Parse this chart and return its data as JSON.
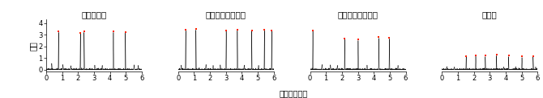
{
  "titles": [
    "生殖適齢期",
    "中年期（周期的）",
    "中年期（不規則）",
    "閉経後"
  ],
  "xlabel": "記録（時間）",
  "ylabel": "強度",
  "xlim": [
    0,
    6
  ],
  "ylim": [
    -0.15,
    4.3
  ],
  "yticks": [
    0,
    1,
    2,
    3,
    4
  ],
  "xticks": [
    0,
    1,
    2,
    3,
    4,
    5,
    6
  ],
  "spike_color": "#111111",
  "dot_color": "#ff2200",
  "panels": [
    {
      "name": "生殖適齢期",
      "spikes": [
        0.78,
        2.15,
        2.38,
        4.22,
        4.97
      ],
      "spike_heights": [
        3.2,
        3.1,
        3.2,
        3.2,
        3.15
      ],
      "medium_spikes": [
        [
          0.35,
          0.55
        ],
        [
          1.05,
          0.45
        ],
        [
          1.55,
          0.35
        ],
        [
          3.05,
          0.4
        ],
        [
          3.52,
          0.38
        ],
        [
          5.52,
          0.42
        ],
        [
          5.78,
          0.38
        ]
      ]
    },
    {
      "name": "中年期（周期的）",
      "spikes": [
        0.48,
        1.12,
        3.02,
        3.72,
        4.62,
        5.42,
        5.88
      ],
      "spike_heights": [
        3.35,
        3.4,
        3.3,
        3.35,
        3.3,
        3.35,
        3.3
      ],
      "medium_spikes": [
        [
          0.2,
          0.4
        ],
        [
          1.75,
          0.45
        ],
        [
          2.2,
          0.38
        ],
        [
          2.65,
          0.42
        ],
        [
          4.15,
          0.4
        ],
        [
          5.05,
          0.38
        ]
      ]
    },
    {
      "name": "中年期（不規則）",
      "spikes": [
        0.18,
        2.18,
        3.02,
        4.32,
        4.98
      ],
      "spike_heights": [
        3.3,
        2.6,
        2.5,
        2.7,
        2.65
      ],
      "medium_spikes": [
        [
          0.75,
          0.45
        ],
        [
          1.28,
          0.42
        ],
        [
          1.72,
          0.38
        ],
        [
          3.58,
          0.4
        ],
        [
          5.52,
          0.38
        ]
      ]
    },
    {
      "name": "閉経後",
      "spikes": [
        1.52,
        2.12,
        2.72,
        3.42,
        4.18,
        5.02,
        5.72
      ],
      "spike_heights": [
        1.1,
        1.15,
        1.12,
        1.2,
        1.12,
        1.05,
        1.1
      ],
      "medium_spikes": [
        [
          0.3,
          0.28
        ],
        [
          0.78,
          0.25
        ],
        [
          3.88,
          0.25
        ],
        [
          4.62,
          0.27
        ],
        [
          5.88,
          0.25
        ]
      ]
    }
  ],
  "fig_width": 6.7,
  "fig_height": 1.22,
  "dpi": 100,
  "title_fontsize": 7.5,
  "label_fontsize": 7,
  "tick_fontsize": 6
}
